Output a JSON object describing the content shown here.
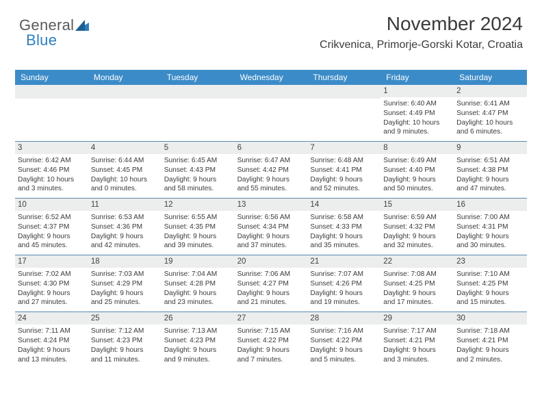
{
  "logo": {
    "part1": "General",
    "part2": "Blue"
  },
  "header": {
    "title": "November 2024",
    "subtitle": "Crikvenica, Primorje-Gorski Kotar, Croatia"
  },
  "colors": {
    "headerBar": "#3b8bc8",
    "weekBorder": "#5b89ae",
    "dayRowBg": "#eceded",
    "text": "#3a3a3a",
    "logoGray": "#585a5c",
    "logoBlue": "#2c7fbf",
    "background": "#ffffff"
  },
  "dayNames": [
    "Sunday",
    "Monday",
    "Tuesday",
    "Wednesday",
    "Thursday",
    "Friday",
    "Saturday"
  ],
  "weeks": [
    [
      {
        "day": "",
        "sunrise": "",
        "sunset": "",
        "daylight": ""
      },
      {
        "day": "",
        "sunrise": "",
        "sunset": "",
        "daylight": ""
      },
      {
        "day": "",
        "sunrise": "",
        "sunset": "",
        "daylight": ""
      },
      {
        "day": "",
        "sunrise": "",
        "sunset": "",
        "daylight": ""
      },
      {
        "day": "",
        "sunrise": "",
        "sunset": "",
        "daylight": ""
      },
      {
        "day": "1",
        "sunrise": "Sunrise: 6:40 AM",
        "sunset": "Sunset: 4:49 PM",
        "daylight": "Daylight: 10 hours\nand 9 minutes."
      },
      {
        "day": "2",
        "sunrise": "Sunrise: 6:41 AM",
        "sunset": "Sunset: 4:47 PM",
        "daylight": "Daylight: 10 hours\nand 6 minutes."
      }
    ],
    [
      {
        "day": "3",
        "sunrise": "Sunrise: 6:42 AM",
        "sunset": "Sunset: 4:46 PM",
        "daylight": "Daylight: 10 hours\nand 3 minutes."
      },
      {
        "day": "4",
        "sunrise": "Sunrise: 6:44 AM",
        "sunset": "Sunset: 4:45 PM",
        "daylight": "Daylight: 10 hours\nand 0 minutes."
      },
      {
        "day": "5",
        "sunrise": "Sunrise: 6:45 AM",
        "sunset": "Sunset: 4:43 PM",
        "daylight": "Daylight: 9 hours\nand 58 minutes."
      },
      {
        "day": "6",
        "sunrise": "Sunrise: 6:47 AM",
        "sunset": "Sunset: 4:42 PM",
        "daylight": "Daylight: 9 hours\nand 55 minutes."
      },
      {
        "day": "7",
        "sunrise": "Sunrise: 6:48 AM",
        "sunset": "Sunset: 4:41 PM",
        "daylight": "Daylight: 9 hours\nand 52 minutes."
      },
      {
        "day": "8",
        "sunrise": "Sunrise: 6:49 AM",
        "sunset": "Sunset: 4:40 PM",
        "daylight": "Daylight: 9 hours\nand 50 minutes."
      },
      {
        "day": "9",
        "sunrise": "Sunrise: 6:51 AM",
        "sunset": "Sunset: 4:38 PM",
        "daylight": "Daylight: 9 hours\nand 47 minutes."
      }
    ],
    [
      {
        "day": "10",
        "sunrise": "Sunrise: 6:52 AM",
        "sunset": "Sunset: 4:37 PM",
        "daylight": "Daylight: 9 hours\nand 45 minutes."
      },
      {
        "day": "11",
        "sunrise": "Sunrise: 6:53 AM",
        "sunset": "Sunset: 4:36 PM",
        "daylight": "Daylight: 9 hours\nand 42 minutes."
      },
      {
        "day": "12",
        "sunrise": "Sunrise: 6:55 AM",
        "sunset": "Sunset: 4:35 PM",
        "daylight": "Daylight: 9 hours\nand 39 minutes."
      },
      {
        "day": "13",
        "sunrise": "Sunrise: 6:56 AM",
        "sunset": "Sunset: 4:34 PM",
        "daylight": "Daylight: 9 hours\nand 37 minutes."
      },
      {
        "day": "14",
        "sunrise": "Sunrise: 6:58 AM",
        "sunset": "Sunset: 4:33 PM",
        "daylight": "Daylight: 9 hours\nand 35 minutes."
      },
      {
        "day": "15",
        "sunrise": "Sunrise: 6:59 AM",
        "sunset": "Sunset: 4:32 PM",
        "daylight": "Daylight: 9 hours\nand 32 minutes."
      },
      {
        "day": "16",
        "sunrise": "Sunrise: 7:00 AM",
        "sunset": "Sunset: 4:31 PM",
        "daylight": "Daylight: 9 hours\nand 30 minutes."
      }
    ],
    [
      {
        "day": "17",
        "sunrise": "Sunrise: 7:02 AM",
        "sunset": "Sunset: 4:30 PM",
        "daylight": "Daylight: 9 hours\nand 27 minutes."
      },
      {
        "day": "18",
        "sunrise": "Sunrise: 7:03 AM",
        "sunset": "Sunset: 4:29 PM",
        "daylight": "Daylight: 9 hours\nand 25 minutes."
      },
      {
        "day": "19",
        "sunrise": "Sunrise: 7:04 AM",
        "sunset": "Sunset: 4:28 PM",
        "daylight": "Daylight: 9 hours\nand 23 minutes."
      },
      {
        "day": "20",
        "sunrise": "Sunrise: 7:06 AM",
        "sunset": "Sunset: 4:27 PM",
        "daylight": "Daylight: 9 hours\nand 21 minutes."
      },
      {
        "day": "21",
        "sunrise": "Sunrise: 7:07 AM",
        "sunset": "Sunset: 4:26 PM",
        "daylight": "Daylight: 9 hours\nand 19 minutes."
      },
      {
        "day": "22",
        "sunrise": "Sunrise: 7:08 AM",
        "sunset": "Sunset: 4:25 PM",
        "daylight": "Daylight: 9 hours\nand 17 minutes."
      },
      {
        "day": "23",
        "sunrise": "Sunrise: 7:10 AM",
        "sunset": "Sunset: 4:25 PM",
        "daylight": "Daylight: 9 hours\nand 15 minutes."
      }
    ],
    [
      {
        "day": "24",
        "sunrise": "Sunrise: 7:11 AM",
        "sunset": "Sunset: 4:24 PM",
        "daylight": "Daylight: 9 hours\nand 13 minutes."
      },
      {
        "day": "25",
        "sunrise": "Sunrise: 7:12 AM",
        "sunset": "Sunset: 4:23 PM",
        "daylight": "Daylight: 9 hours\nand 11 minutes."
      },
      {
        "day": "26",
        "sunrise": "Sunrise: 7:13 AM",
        "sunset": "Sunset: 4:23 PM",
        "daylight": "Daylight: 9 hours\nand 9 minutes."
      },
      {
        "day": "27",
        "sunrise": "Sunrise: 7:15 AM",
        "sunset": "Sunset: 4:22 PM",
        "daylight": "Daylight: 9 hours\nand 7 minutes."
      },
      {
        "day": "28",
        "sunrise": "Sunrise: 7:16 AM",
        "sunset": "Sunset: 4:22 PM",
        "daylight": "Daylight: 9 hours\nand 5 minutes."
      },
      {
        "day": "29",
        "sunrise": "Sunrise: 7:17 AM",
        "sunset": "Sunset: 4:21 PM",
        "daylight": "Daylight: 9 hours\nand 3 minutes."
      },
      {
        "day": "30",
        "sunrise": "Sunrise: 7:18 AM",
        "sunset": "Sunset: 4:21 PM",
        "daylight": "Daylight: 9 hours\nand 2 minutes."
      }
    ]
  ]
}
